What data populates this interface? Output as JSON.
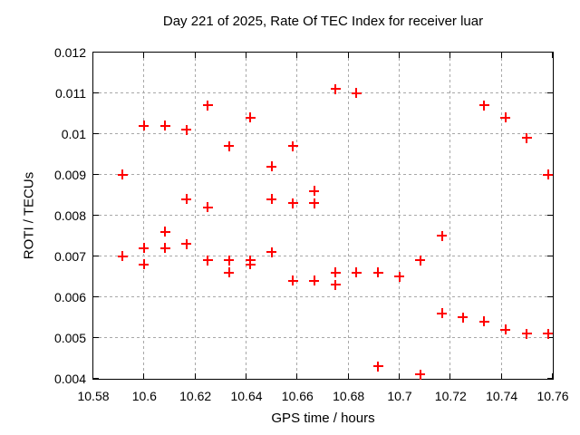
{
  "chart_data": {
    "type": "scatter",
    "title": "Day 221 of 2025, Rate Of TEC Index for receiver luar",
    "xlabel": "GPS time / hours",
    "ylabel": "ROTI / TECUs",
    "xlim": [
      10.58,
      10.76
    ],
    "ylim": [
      0.004,
      0.012
    ],
    "grid": true,
    "legend": "none",
    "marker": {
      "style": "plus",
      "color": "#ff0000",
      "size": 11
    },
    "grid_color": "#a8a8a8",
    "xticks": {
      "values": [
        10.58,
        10.6,
        10.62,
        10.64,
        10.66,
        10.68,
        10.7,
        10.72,
        10.74,
        10.76
      ],
      "labels": [
        "10.58",
        "10.6",
        "10.62",
        "10.64",
        "10.66",
        "10.68",
        "10.7",
        "10.72",
        "10.74",
        "10.76"
      ]
    },
    "yticks": {
      "values": [
        0.004,
        0.005,
        0.006,
        0.007,
        0.008,
        0.009,
        0.01,
        0.011,
        0.012
      ],
      "labels": [
        "0.004",
        "0.005",
        "0.006",
        "0.007",
        "0.008",
        "0.009",
        "0.01",
        "0.011",
        "0.012"
      ]
    },
    "series": [
      {
        "name": "ROTI",
        "points": [
          [
            10.5917,
            0.009
          ],
          [
            10.5917,
            0.007
          ],
          [
            10.6,
            0.0102
          ],
          [
            10.6,
            0.0072
          ],
          [
            10.6,
            0.0068
          ],
          [
            10.6083,
            0.0102
          ],
          [
            10.6083,
            0.0076
          ],
          [
            10.6083,
            0.0072
          ],
          [
            10.6167,
            0.0101
          ],
          [
            10.6167,
            0.0084
          ],
          [
            10.6167,
            0.0073
          ],
          [
            10.625,
            0.0107
          ],
          [
            10.625,
            0.0082
          ],
          [
            10.625,
            0.0069
          ],
          [
            10.6333,
            0.0097
          ],
          [
            10.6333,
            0.0069
          ],
          [
            10.6333,
            0.0066
          ],
          [
            10.6417,
            0.0104
          ],
          [
            10.6417,
            0.0069
          ],
          [
            10.6417,
            0.0068
          ],
          [
            10.65,
            0.0092
          ],
          [
            10.65,
            0.0084
          ],
          [
            10.65,
            0.0071
          ],
          [
            10.6583,
            0.0097
          ],
          [
            10.6583,
            0.0083
          ],
          [
            10.6583,
            0.0064
          ],
          [
            10.6667,
            0.0086
          ],
          [
            10.6667,
            0.0083
          ],
          [
            10.6667,
            0.0064
          ],
          [
            10.675,
            0.0111
          ],
          [
            10.675,
            0.0066
          ],
          [
            10.675,
            0.0063
          ],
          [
            10.6833,
            0.011
          ],
          [
            10.6833,
            0.0066
          ],
          [
            10.6917,
            0.0066
          ],
          [
            10.6917,
            0.0043
          ],
          [
            10.7,
            0.0065
          ],
          [
            10.7083,
            0.0069
          ],
          [
            10.7083,
            0.0041
          ],
          [
            10.7167,
            0.0075
          ],
          [
            10.7167,
            0.0056
          ],
          [
            10.725,
            0.0055
          ],
          [
            10.7333,
            0.0107
          ],
          [
            10.7333,
            0.0054
          ],
          [
            10.7417,
            0.0104
          ],
          [
            10.7417,
            0.0052
          ],
          [
            10.75,
            0.0099
          ],
          [
            10.75,
            0.0051
          ],
          [
            10.7583,
            0.009
          ],
          [
            10.7583,
            0.0051
          ]
        ]
      }
    ]
  }
}
